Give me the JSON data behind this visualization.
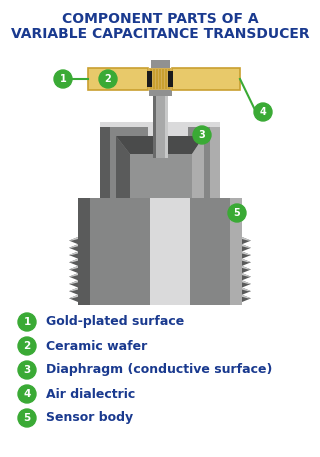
{
  "title_line1": "COMPONENT PARTS OF A",
  "title_line2": "VARIABLE CAPACITANCE TRANSDUCER",
  "title_color": "#1a3a8f",
  "background_color": "#ffffff",
  "green_circle_color": "#3aaa35",
  "label_color": "#1a3a8f",
  "labels": [
    {
      "num": "1",
      "text": "Gold-plated surface"
    },
    {
      "num": "2",
      "text": "Ceramic wafer"
    },
    {
      "num": "3",
      "text": "Diaphragm (conductive surface)"
    },
    {
      "num": "4",
      "text": "Air dialectric"
    },
    {
      "num": "5",
      "text": "Sensor body"
    }
  ],
  "gc_dark": "#5a5b5b",
  "gc_mid": "#858686",
  "gc_light": "#adadad",
  "gc_lighter": "#c8c9c9",
  "gc_lightest": "#dadadb",
  "gc_cavity_dark": "#4a4b4b",
  "gc_cavity_inner": "#929393",
  "ceramic_fill": "#e8c96a",
  "ceramic_border": "#c9a030",
  "ceramic_mid": "#d4b055",
  "stem_main": "#a8a9a9",
  "stem_dark": "#6a6b6b",
  "stem_light": "#c8c9c9",
  "stem_tip": "#909191",
  "conn_dark": "#1a1b1b",
  "green": "#3aaa35",
  "white": "#ffffff"
}
